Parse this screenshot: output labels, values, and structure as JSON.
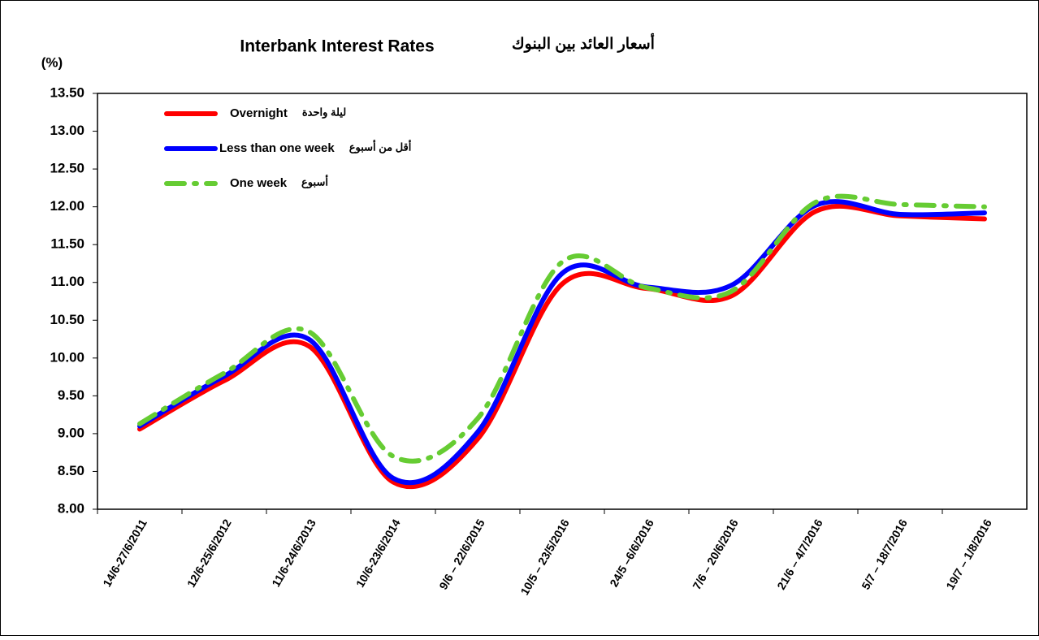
{
  "chart_data": {
    "type": "line",
    "title": "Interbank Interest Rates",
    "title_ar": "أسعار العائد بين البنوك",
    "y_label": "(%)",
    "categories": [
      "14/6-27/6/2011",
      "12/6-25/6/2012",
      "11/6-24/6/2013",
      "10/6-23/6/2014",
      "9/6 – 22/6/2015",
      "10/5 – 23/5/2016",
      "24/5 –6/6/2016",
      "7/6 – 20/6/2016",
      "21/6 – 4/7/2016",
      "5/7 – 18/7/2016",
      "19/7 – 1/8/2016"
    ],
    "series": [
      {
        "name": "Overnight",
        "name_ar": "ليلة واحدة",
        "color": "#ff0000",
        "style": "solid",
        "values": [
          9.06,
          9.7,
          10.16,
          8.36,
          8.93,
          10.98,
          10.92,
          10.82,
          11.94,
          11.88,
          11.84
        ]
      },
      {
        "name": "Less than one week",
        "name_ar": "أقل من أسبوع",
        "color": "#0000ff",
        "style": "solid",
        "values": [
          9.1,
          9.76,
          10.25,
          8.41,
          9.02,
          11.12,
          10.94,
          10.96,
          12.02,
          11.9,
          11.92
        ]
      },
      {
        "name": "One week",
        "name_ar": "أسبوع",
        "color": "#66cc33",
        "style": "dashdot",
        "values": [
          9.13,
          9.8,
          10.35,
          8.7,
          9.2,
          11.27,
          10.93,
          10.88,
          12.06,
          12.03,
          12.0
        ]
      }
    ],
    "ylim": [
      8.0,
      13.5
    ],
    "yticks": [
      {
        "value": 8,
        "label": "8.00"
      },
      {
        "value": 8.5,
        "label": "8.50"
      },
      {
        "value": 9,
        "label": "9.00"
      },
      {
        "value": 9.5,
        "label": "9.50"
      },
      {
        "value": 10,
        "label": "10.00"
      },
      {
        "value": 10.5,
        "label": "10.50"
      },
      {
        "value": 11,
        "label": "11.00"
      },
      {
        "value": 11.5,
        "label": "11.50"
      },
      {
        "value": 12,
        "label": "12.00"
      },
      {
        "value": 12.5,
        "label": "12.50"
      },
      {
        "value": 13,
        "label": "13.00"
      },
      {
        "value": 13.5,
        "label": "13.50"
      }
    ],
    "grid": false,
    "legend": "top-left"
  }
}
